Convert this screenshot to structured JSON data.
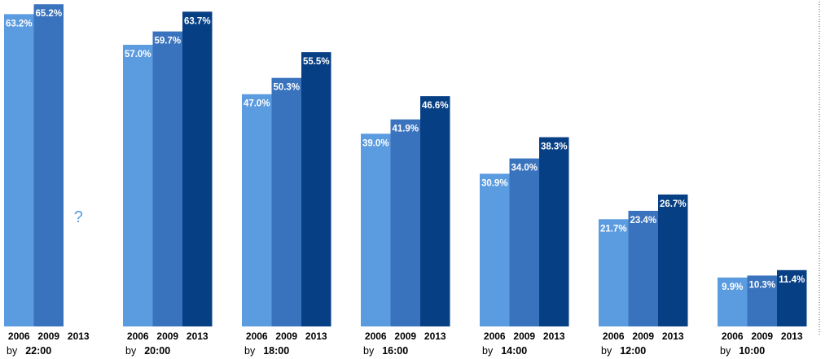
{
  "chart_data": {
    "type": "bar",
    "categories": [
      "by 22:00",
      "by 20:00",
      "by 18:00",
      "by 16:00",
      "by 14:00",
      "by 12:00",
      "by 10:00"
    ],
    "group_prefix": "by",
    "group_times": [
      "22:00",
      "20:00",
      "18:00",
      "16:00",
      "14:00",
      "12:00",
      "10:00"
    ],
    "series": [
      {
        "name": "2006",
        "color": "#5b9be0",
        "values": [
          63.2,
          57.0,
          47.0,
          39.0,
          30.9,
          21.7,
          9.9
        ],
        "labels": [
          "63.2%",
          "57.0%",
          "47.0%",
          "39.0%",
          "30.9%",
          "21.7%",
          "9.9%"
        ]
      },
      {
        "name": "2009",
        "color": "#3a73bd",
        "values": [
          65.2,
          59.7,
          50.3,
          41.9,
          34.0,
          23.4,
          10.3
        ],
        "labels": [
          "65.2%",
          "59.7%",
          "50.3%",
          "41.9%",
          "34.0%",
          "23.4%",
          "10.3%"
        ]
      },
      {
        "name": "2013",
        "color": "#073f84",
        "values": [
          null,
          63.7,
          55.5,
          46.6,
          38.3,
          26.7,
          11.4
        ],
        "labels": [
          null,
          "63.7%",
          "55.5%",
          "46.6%",
          "38.3%",
          "26.7%",
          "11.4%"
        ]
      }
    ],
    "missing_marker": "?",
    "ylim": [
      0,
      66
    ],
    "grid": false,
    "title": "",
    "xlabel": "",
    "ylabel": ""
  }
}
